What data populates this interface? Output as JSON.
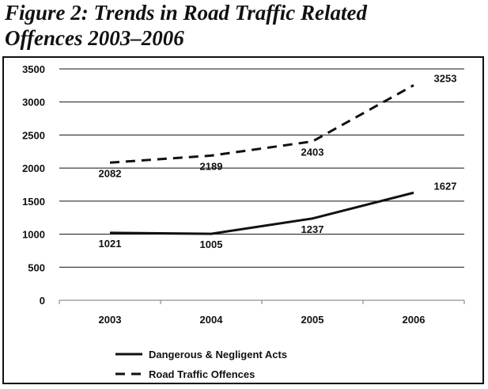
{
  "figure": {
    "title_line1": "Figure 2: Trends in Road Traffic Related",
    "title_line2": "Offences 2003–2006"
  },
  "chart_data": {
    "type": "line",
    "title": "Figure 2: Trends in Road Traffic Related Offences 2003–2006",
    "categories": [
      "2003",
      "2004",
      "2005",
      "2006"
    ],
    "ylim": [
      0,
      3500
    ],
    "yticks": [
      0,
      500,
      1000,
      1500,
      2000,
      2500,
      3000,
      3500
    ],
    "grid": true,
    "legend_placement": "bottom",
    "series": [
      {
        "name": "Dangerous & Negligent Acts",
        "values": [
          1021,
          1005,
          1237,
          1627
        ],
        "style": "solid",
        "color": "#111111"
      },
      {
        "name": "Road Traffic Offences",
        "values": [
          2082,
          2189,
          2403,
          3253
        ],
        "style": "dashed",
        "color": "#111111"
      }
    ]
  }
}
